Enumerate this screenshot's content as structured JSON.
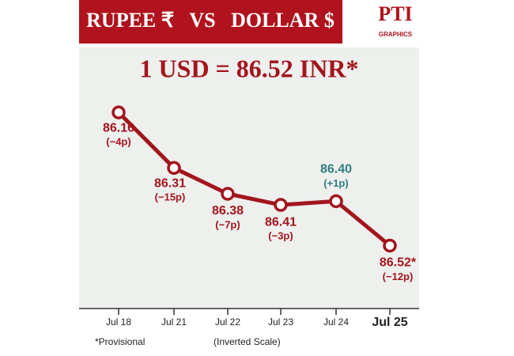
{
  "header": {
    "title": "RUPEE ₹   VS   DOLLAR $",
    "logo": "PTI",
    "logo_sub": "GRAPHICS"
  },
  "chart_data": {
    "type": "line",
    "title": "1 USD = 86.52 INR*",
    "categories": [
      "Jul 18",
      "Jul 21",
      "Jul 22",
      "Jul 23",
      "Jul 24",
      "Jul 25"
    ],
    "values": [
      86.16,
      86.31,
      86.38,
      86.41,
      86.4,
      86.52
    ],
    "value_labels": [
      "86.16",
      "86.31",
      "86.38",
      "86.41",
      "86.40",
      "86.52*"
    ],
    "change_labels": [
      "(−4p)",
      "(−15p)",
      "(−7p)",
      "(−3p)",
      "(+1p)",
      "(−12p)"
    ],
    "label_colors": [
      "#a3151d",
      "#a3151d",
      "#a3151d",
      "#a3151d",
      "#2e7d7f",
      "#a3151d"
    ],
    "color": "#a3151d",
    "ylim": [
      86.07,
      86.69
    ],
    "inverted": true,
    "note": "*Provisional",
    "axis_note": "(Inverted Scale)"
  }
}
